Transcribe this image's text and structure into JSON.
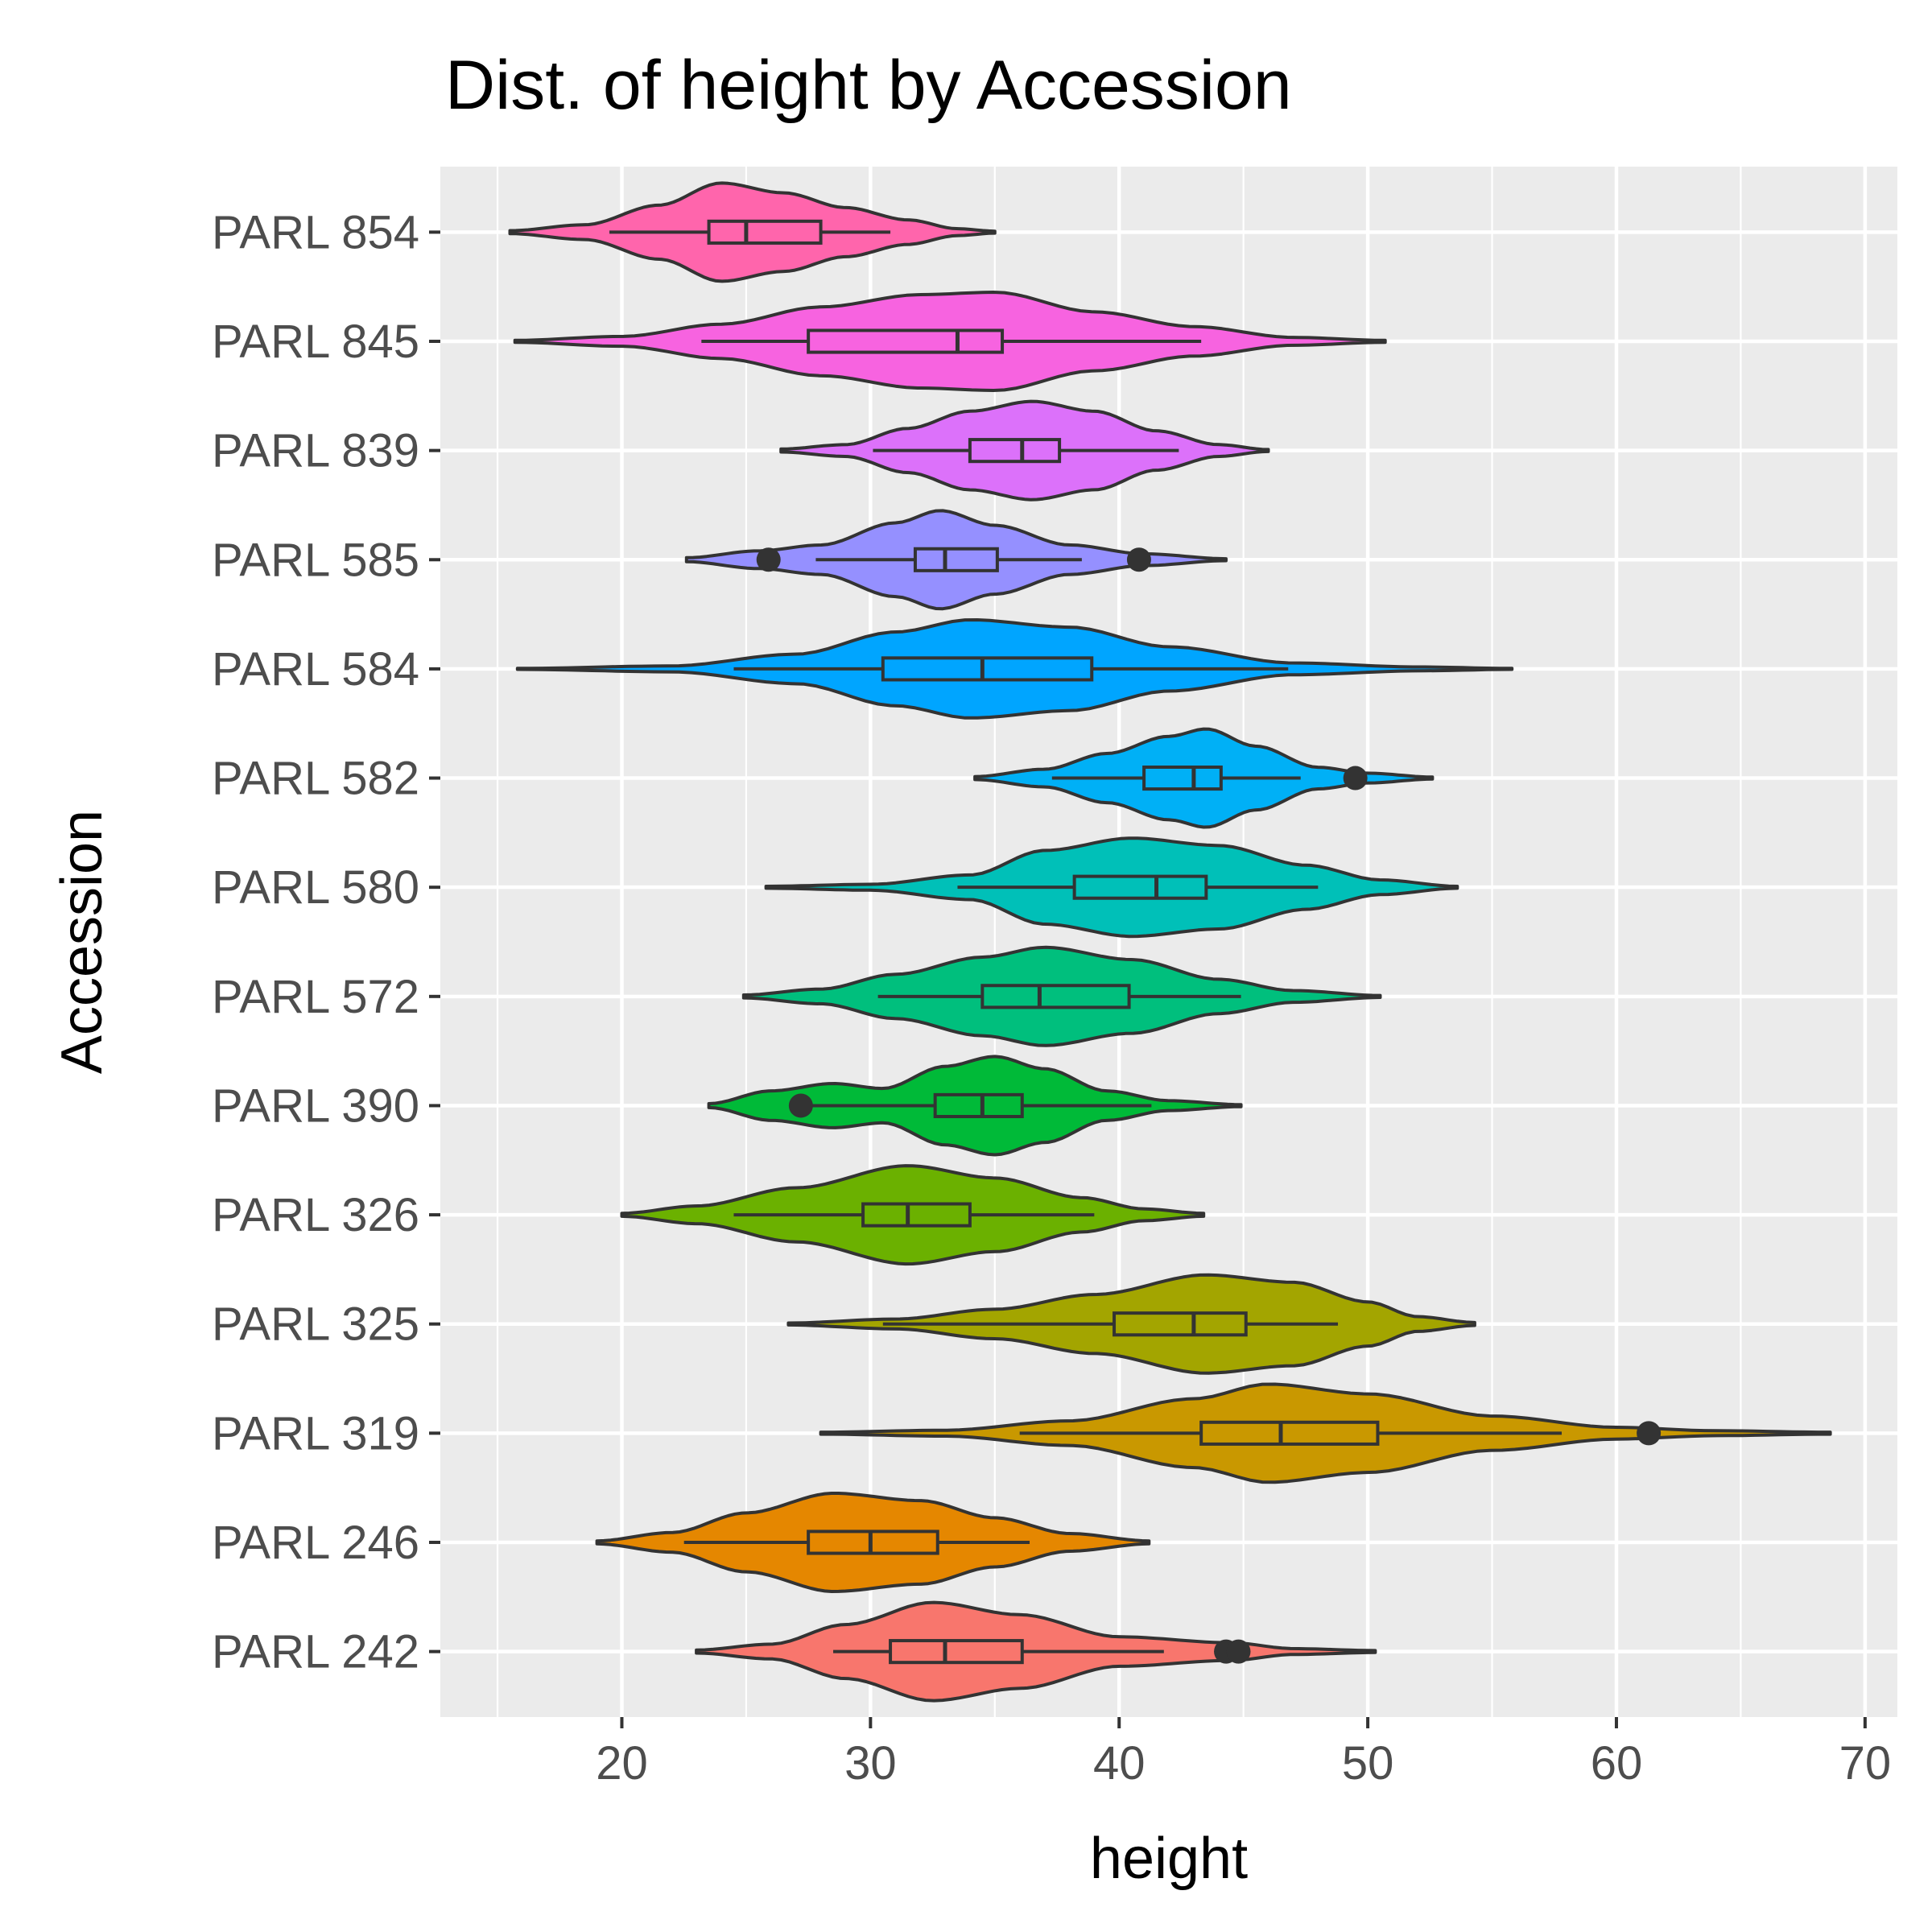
{
  "chart_data": {
    "type": "violin",
    "title": "Dist. of height by Accession",
    "xlabel": "height",
    "ylabel": "Accession",
    "xlim": [
      12.7,
      71.3
    ],
    "x_ticks": [
      20,
      30,
      40,
      50,
      60,
      70
    ],
    "grid": true,
    "legend": "none",
    "panel_color": "#EBEBEB",
    "outline_color": "#333333",
    "categories": [
      "PARL 242",
      "PARL 246",
      "PARL 319",
      "PARL 325",
      "PARL 326",
      "PARL 390",
      "PARL 572",
      "PARL 580",
      "PARL 582",
      "PARL 584",
      "PARL 585",
      "PARL 839",
      "PARL 845",
      "PARL 854"
    ],
    "series": [
      {
        "category": "PARL 242",
        "color": "#F8766D",
        "min": 23.0,
        "max": 50.3,
        "whisker_low": 28.5,
        "q1": 30.8,
        "median": 33.0,
        "q3": 36.1,
        "whisker_high": 41.8,
        "outliers": [
          44.3,
          44.8
        ],
        "density": [
          [
            23.0,
            0.03
          ],
          [
            26,
            0.15
          ],
          [
            29,
            0.55
          ],
          [
            32.5,
            1.0
          ],
          [
            36,
            0.75
          ],
          [
            40,
            0.3
          ],
          [
            44.5,
            0.18
          ],
          [
            47,
            0.06
          ],
          [
            50.3,
            0.02
          ]
        ]
      },
      {
        "category": "PARL 246",
        "color": "#E58700",
        "min": 19.0,
        "max": 41.2,
        "whisker_low": 22.5,
        "q1": 27.5,
        "median": 30.0,
        "q3": 32.7,
        "whisker_high": 36.4,
        "outliers": [],
        "density": [
          [
            19.0,
            0.03
          ],
          [
            22,
            0.2
          ],
          [
            25,
            0.6
          ],
          [
            28.5,
            1.0
          ],
          [
            32,
            0.85
          ],
          [
            35,
            0.5
          ],
          [
            38,
            0.18
          ],
          [
            41.2,
            0.03
          ]
        ]
      },
      {
        "category": "PARL 319",
        "color": "#C99800",
        "min": 28.0,
        "max": 68.6,
        "whisker_low": 36.0,
        "q1": 43.3,
        "median": 46.5,
        "q3": 50.4,
        "whisker_high": 57.8,
        "outliers": [
          61.3
        ],
        "density": [
          [
            28.0,
            0.02
          ],
          [
            33,
            0.06
          ],
          [
            38,
            0.25
          ],
          [
            43,
            0.7
          ],
          [
            46,
            1.0
          ],
          [
            50,
            0.8
          ],
          [
            55,
            0.35
          ],
          [
            60,
            0.12
          ],
          [
            64,
            0.05
          ],
          [
            68.6,
            0.02
          ]
        ]
      },
      {
        "category": "PARL 325",
        "color": "#A3A500",
        "min": 26.7,
        "max": 54.3,
        "whisker_low": 30.5,
        "q1": 39.8,
        "median": 43.0,
        "q3": 45.1,
        "whisker_high": 48.8,
        "outliers": [],
        "density": [
          [
            26.7,
            0.02
          ],
          [
            31,
            0.1
          ],
          [
            35,
            0.3
          ],
          [
            39,
            0.6
          ],
          [
            43.5,
            1.0
          ],
          [
            47,
            0.85
          ],
          [
            50,
            0.45
          ],
          [
            52,
            0.15
          ],
          [
            54.3,
            0.03
          ]
        ]
      },
      {
        "category": "PARL 326",
        "color": "#6BB100",
        "min": 20.0,
        "max": 43.4,
        "whisker_low": 24.5,
        "q1": 29.7,
        "median": 31.5,
        "q3": 34.0,
        "whisker_high": 39.0,
        "outliers": [],
        "density": [
          [
            20.0,
            0.03
          ],
          [
            23,
            0.18
          ],
          [
            27,
            0.55
          ],
          [
            31.5,
            1.0
          ],
          [
            35,
            0.75
          ],
          [
            38.5,
            0.35
          ],
          [
            41,
            0.12
          ],
          [
            43.4,
            0.03
          ]
        ]
      },
      {
        "category": "PARL 390",
        "color": "#00BA38",
        "min": 23.5,
        "max": 44.9,
        "whisker_low": 27.2,
        "q1": 32.6,
        "median": 34.5,
        "q3": 36.1,
        "whisker_high": 41.3,
        "outliers": [
          27.2
        ],
        "density": [
          [
            23.5,
            0.04
          ],
          [
            26,
            0.3
          ],
          [
            28.5,
            0.45
          ],
          [
            30.5,
            0.35
          ],
          [
            33,
            0.8
          ],
          [
            35,
            1.0
          ],
          [
            37,
            0.75
          ],
          [
            39.5,
            0.3
          ],
          [
            42,
            0.1
          ],
          [
            44.9,
            0.02
          ]
        ]
      },
      {
        "category": "PARL 572",
        "color": "#00BF7D",
        "min": 24.9,
        "max": 50.5,
        "whisker_low": 30.3,
        "q1": 34.5,
        "median": 36.8,
        "q3": 40.4,
        "whisker_high": 44.9,
        "outliers": [],
        "density": [
          [
            24.9,
            0.03
          ],
          [
            28,
            0.15
          ],
          [
            31,
            0.45
          ],
          [
            34.5,
            0.8
          ],
          [
            37,
            1.0
          ],
          [
            40.5,
            0.75
          ],
          [
            44,
            0.35
          ],
          [
            47,
            0.12
          ],
          [
            50.5,
            0.02
          ]
        ]
      },
      {
        "category": "PARL 580",
        "color": "#00C0B8",
        "min": 25.8,
        "max": 53.6,
        "whisker_low": 33.5,
        "q1": 38.2,
        "median": 41.5,
        "q3": 43.5,
        "whisker_high": 48.0,
        "outliers": [],
        "density": [
          [
            25.8,
            0.02
          ],
          [
            30,
            0.06
          ],
          [
            34,
            0.25
          ],
          [
            37,
            0.75
          ],
          [
            40.5,
            1.0
          ],
          [
            44,
            0.85
          ],
          [
            47.5,
            0.45
          ],
          [
            50.5,
            0.15
          ],
          [
            53.6,
            0.02
          ]
        ]
      },
      {
        "category": "PARL 582",
        "color": "#00B0F6",
        "min": 34.2,
        "max": 52.6,
        "whisker_low": 37.3,
        "q1": 41.0,
        "median": 43.0,
        "q3": 44.1,
        "whisker_high": 47.3,
        "outliers": [
          49.5
        ],
        "density": [
          [
            34.2,
            0.03
          ],
          [
            37,
            0.18
          ],
          [
            39.5,
            0.5
          ],
          [
            42,
            0.85
          ],
          [
            43.5,
            1.0
          ],
          [
            45.5,
            0.65
          ],
          [
            48,
            0.22
          ],
          [
            50,
            0.1
          ],
          [
            52.6,
            0.02
          ]
        ]
      },
      {
        "category": "PARL 584",
        "color": "#00A5FF",
        "min": 15.8,
        "max": 55.8,
        "whisker_low": 24.5,
        "q1": 30.5,
        "median": 34.5,
        "q3": 38.9,
        "whisker_high": 46.8,
        "outliers": [],
        "density": [
          [
            15.8,
            0.01
          ],
          [
            22,
            0.06
          ],
          [
            27,
            0.3
          ],
          [
            31,
            0.75
          ],
          [
            34,
            1.0
          ],
          [
            38,
            0.85
          ],
          [
            42,
            0.45
          ],
          [
            47,
            0.12
          ],
          [
            52,
            0.04
          ],
          [
            55.8,
            0.01
          ]
        ]
      },
      {
        "category": "PARL 585",
        "color": "#9590FF",
        "min": 22.6,
        "max": 44.3,
        "whisker_low": 27.8,
        "q1": 31.8,
        "median": 33.0,
        "q3": 35.1,
        "whisker_high": 38.5,
        "outliers": [
          25.9,
          40.8
        ],
        "density": [
          [
            22.6,
            0.04
          ],
          [
            25.5,
            0.18
          ],
          [
            28,
            0.3
          ],
          [
            31,
            0.75
          ],
          [
            32.8,
            1.0
          ],
          [
            35,
            0.7
          ],
          [
            38,
            0.3
          ],
          [
            41,
            0.12
          ],
          [
            44.3,
            0.02
          ]
        ]
      },
      {
        "category": "PARL 839",
        "color": "#DC71FA",
        "min": 26.4,
        "max": 46.0,
        "whisker_low": 30.1,
        "q1": 34.0,
        "median": 36.1,
        "q3": 37.6,
        "whisker_high": 42.4,
        "outliers": [],
        "density": [
          [
            26.4,
            0.03
          ],
          [
            29,
            0.12
          ],
          [
            31.5,
            0.45
          ],
          [
            34,
            0.8
          ],
          [
            36.5,
            1.0
          ],
          [
            39,
            0.8
          ],
          [
            41.5,
            0.4
          ],
          [
            44,
            0.12
          ],
          [
            46.0,
            0.02
          ]
        ]
      },
      {
        "category": "PARL 845",
        "color": "#F763E0",
        "min": 15.7,
        "max": 50.7,
        "whisker_low": 23.2,
        "q1": 27.5,
        "median": 33.5,
        "q3": 35.3,
        "whisker_high": 43.3,
        "outliers": [],
        "density": [
          [
            15.7,
            0.02
          ],
          [
            20,
            0.1
          ],
          [
            24,
            0.35
          ],
          [
            28,
            0.7
          ],
          [
            32,
            0.95
          ],
          [
            35,
            1.0
          ],
          [
            39,
            0.6
          ],
          [
            43,
            0.3
          ],
          [
            47,
            0.08
          ],
          [
            50.7,
            0.02
          ]
        ]
      },
      {
        "category": "PARL 854",
        "color": "#FF65AC",
        "min": 15.5,
        "max": 35.0,
        "whisker_low": 19.5,
        "q1": 23.5,
        "median": 25.0,
        "q3": 28.0,
        "whisker_high": 30.8,
        "outliers": [],
        "density": [
          [
            15.5,
            0.03
          ],
          [
            18.5,
            0.15
          ],
          [
            21.5,
            0.55
          ],
          [
            24,
            1.0
          ],
          [
            26.5,
            0.8
          ],
          [
            29,
            0.5
          ],
          [
            31.5,
            0.25
          ],
          [
            33.5,
            0.07
          ],
          [
            35.0,
            0.02
          ]
        ]
      }
    ]
  }
}
